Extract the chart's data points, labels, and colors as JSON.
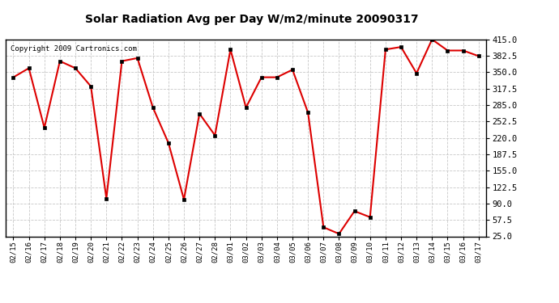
{
  "title": "Solar Radiation Avg per Day W/m2/minute 20090317",
  "copyright": "Copyright 2009 Cartronics.com",
  "labels": [
    "02/15",
    "02/16",
    "02/17",
    "02/18",
    "02/19",
    "02/20",
    "02/21",
    "02/22",
    "02/23",
    "02/24",
    "02/25",
    "02/26",
    "02/27",
    "02/28",
    "03/01",
    "03/02",
    "03/03",
    "03/04",
    "03/05",
    "03/06",
    "03/07",
    "03/08",
    "03/09",
    "03/10",
    "03/11",
    "03/12",
    "03/13",
    "03/14",
    "03/15",
    "03/16",
    "03/17"
  ],
  "values": [
    340,
    358,
    240,
    372,
    358,
    322,
    100,
    372,
    378,
    280,
    210,
    98,
    268,
    225,
    395,
    280,
    340,
    340,
    355,
    270,
    43,
    30,
    75,
    63,
    395,
    400,
    348,
    415,
    393,
    393,
    382
  ],
  "line_color": "#dd0000",
  "marker_color": "#000000",
  "bg_color": "#ffffff",
  "grid_color": "#c8c8c8",
  "ylim_min": 25.0,
  "ylim_max": 415.0,
  "yticks": [
    25.0,
    57.5,
    90.0,
    122.5,
    155.0,
    187.5,
    220.0,
    252.5,
    285.0,
    317.5,
    350.0,
    382.5,
    415.0
  ]
}
